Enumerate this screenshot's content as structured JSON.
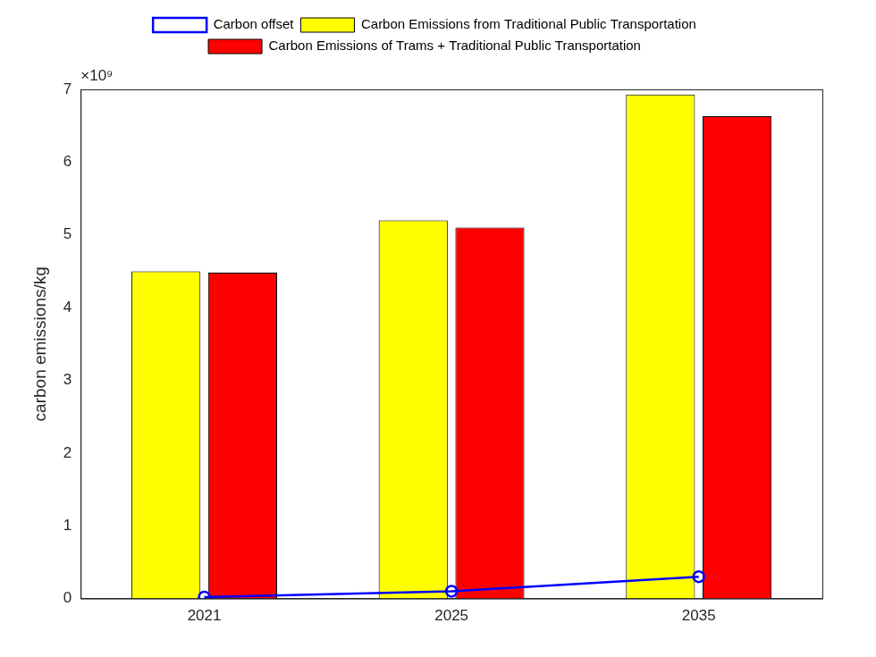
{
  "chart_data": {
    "type": "bar",
    "categories": [
      "2021",
      "2025",
      "2035"
    ],
    "y_label": "carbon emissions/kg",
    "y_exponent_label": "×10⁹",
    "ylim": [
      0,
      7
    ],
    "yticks": [
      0,
      1,
      2,
      3,
      4,
      5,
      6,
      7
    ],
    "grid": false,
    "legend": "top",
    "series": [
      {
        "name": "Carbon Emissions from Traditional Public Transportation",
        "color": "#ffff00",
        "values": [
          4.5,
          5.2,
          6.93
        ]
      },
      {
        "name": "Carbon Emissions of Trams + Traditional Public Transportation",
        "color": "#ff0000",
        "values": [
          4.48,
          5.1,
          6.63
        ]
      },
      {
        "name": "Carbon offset",
        "type": "line",
        "color": "#0000ff",
        "marker": "circle",
        "line_style": "solid",
        "values": [
          0.02,
          0.1,
          0.3
        ]
      }
    ]
  }
}
